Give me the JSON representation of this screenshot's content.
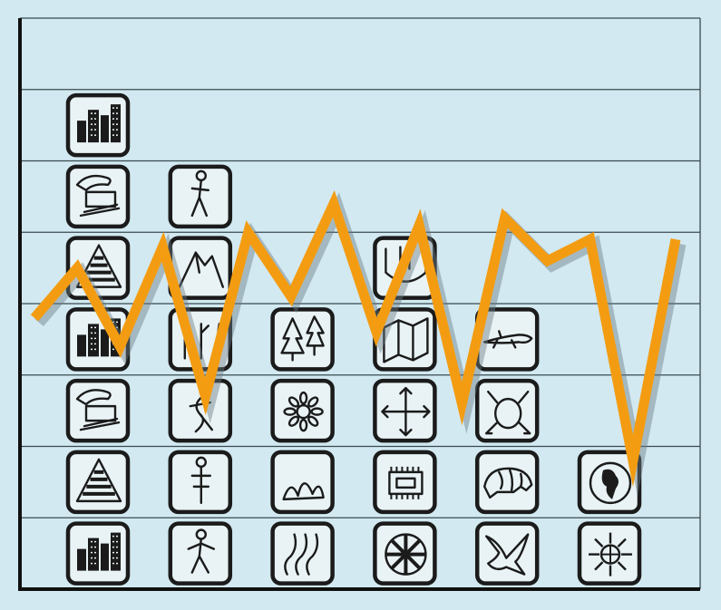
{
  "colors": {
    "background": "#d2e9f1",
    "gridline": "#3a4a50",
    "axis": "#111111",
    "icon_tile": "#e9f3f5",
    "icon_ink": "#1b1b1b",
    "line": "#f39c12",
    "line_shadow": "#6b7d84"
  },
  "chart_data": {
    "type": "bar",
    "title": "",
    "xlabel": "",
    "ylabel": "",
    "grid": true,
    "ylim": [
      0,
      8
    ],
    "bars": [
      {
        "count": 7,
        "icons": [
          "city-icon",
          "triangle-icon",
          "computer-icon",
          "city-icon",
          "triangle-icon",
          "computer-icon",
          "city-icon"
        ]
      },
      {
        "count": 6,
        "icons": [
          "person-icon",
          "cross-figure-icon",
          "dancer-icon",
          "figures-icon",
          "mountain-icon",
          "hiker-icon"
        ]
      },
      {
        "count": 4,
        "icons": [
          "waves-icon",
          "cactus-icon",
          "flower-icon",
          "trees-icon"
        ]
      },
      {
        "count": 5,
        "icons": [
          "wheel-icon",
          "chip-icon",
          "arrows-icon",
          "map-icon",
          "tool-icon"
        ]
      },
      {
        "count": 4,
        "icons": [
          "bird-icon",
          "armadillo-icon",
          "frog-icon",
          "lizard-icon"
        ]
      },
      {
        "count": 2,
        "icons": [
          "sun-icon",
          "globe-icon"
        ]
      }
    ],
    "line_series": {
      "values": [
        3.8,
        4.5,
        3.4,
        4.8,
        2.7,
        5.0,
        4.1,
        5.4,
        3.6,
        5.1,
        2.6,
        5.2,
        4.6,
        4.9,
        1.8,
        4.9
      ]
    }
  }
}
